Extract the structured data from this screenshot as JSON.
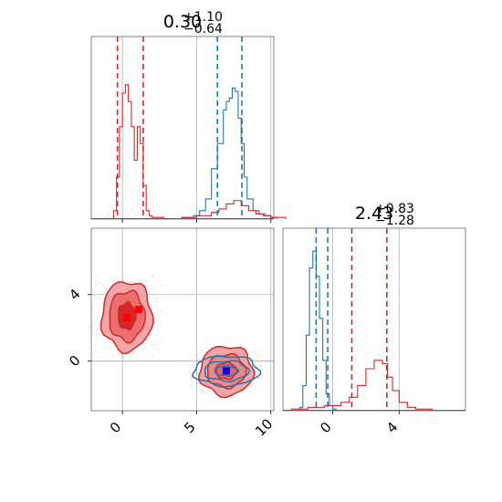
{
  "colors": {
    "blue": "#1f77b4",
    "red": "#d62728",
    "fill_red_light": "#f3a6a6",
    "grid": "#b0b0b0"
  },
  "chart_data": {
    "type": "corner",
    "grid": true,
    "panels": [
      {
        "id": "hist_param1",
        "type": "histogram",
        "title": {
          "main": "0.30",
          "sup": "+1.10",
          "sub": "−0.64"
        },
        "xlim": [
          -2.1,
          10.2
        ],
        "xticks": [
          0,
          5,
          10
        ],
        "series": [
          {
            "color": "red",
            "x": [
              -0.6,
              -0.4,
              -0.2,
              0,
              0.2,
              0.4,
              0.6,
              0.8,
              1.0,
              1.2,
              1.4,
              1.6,
              1.8,
              2.0,
              2.2,
              2.4,
              2.6,
              2.8,
              3.0
            ],
            "density": [
              0.05,
              0.25,
              0.55,
              0.75,
              0.8,
              0.7,
              0.55,
              0.35,
              0.55,
              0.45,
              0.2,
              0.05,
              0.02,
              0.01,
              0.01,
              0.01,
              0.01,
              0,
              0
            ]
          },
          {
            "color": "blue",
            "x": [
              4.0,
              4.4,
              4.8,
              5.2,
              5.6,
              6.0,
              6.4,
              6.8,
              7.0,
              7.2,
              7.4,
              7.6,
              7.8,
              8.0,
              8.2,
              8.4,
              8.8,
              9.2,
              9.6,
              10.0
            ],
            "density": [
              0.005,
              0.01,
              0.02,
              0.05,
              0.12,
              0.3,
              0.45,
              0.65,
              0.7,
              0.72,
              0.78,
              0.76,
              0.6,
              0.45,
              0.25,
              0.12,
              0.05,
              0.03,
              0.02,
              0.01
            ]
          },
          {
            "color": "red",
            "x": [
              4.0,
              5.0,
              6.0,
              6.5,
              7.0,
              7.5,
              8.0,
              8.5,
              9.0,
              9.5,
              10.0
            ],
            "density": [
              0.01,
              0.02,
              0.04,
              0.06,
              0.09,
              0.11,
              0.08,
              0.05,
              0.03,
              0.02,
              0.01
            ]
          }
        ],
        "quantile_lines": [
          {
            "color": "red",
            "x": -0.34
          },
          {
            "color": "red",
            "x": 1.4
          },
          {
            "color": "blue",
            "x": 6.4
          },
          {
            "color": "blue",
            "x": 8.05
          }
        ]
      },
      {
        "id": "hist_param2",
        "type": "histogram",
        "title": {
          "main": "2.43",
          "sup": "+0.83",
          "sub": "−1.28"
        },
        "xlim": [
          -3.0,
          8.0
        ],
        "xticks": [
          0,
          4
        ],
        "series": [
          {
            "color": "blue",
            "x": [
              -2.0,
              -1.8,
              -1.6,
              -1.4,
              -1.2,
              -1.0,
              -0.8,
              -0.6,
              -0.4,
              -0.2,
              0
            ],
            "density": [
              0.02,
              0.15,
              0.45,
              0.85,
              0.95,
              0.8,
              0.55,
              0.3,
              0.1,
              0.03,
              0.01
            ]
          },
          {
            "color": "red",
            "x": [
              -2.5,
              -1.5,
              -0.5,
              0.5,
              1.0,
              1.5,
              2.0,
              2.5,
              3.0,
              3.3,
              3.6,
              4.0,
              4.5,
              5.0
            ],
            "density": [
              0.01,
              0.02,
              0.03,
              0.05,
              0.08,
              0.15,
              0.25,
              0.3,
              0.28,
              0.2,
              0.12,
              0.05,
              0.02,
              0.01
            ]
          }
        ],
        "quantile_lines": [
          {
            "color": "blue",
            "x": -1.0
          },
          {
            "color": "blue",
            "x": -0.3
          },
          {
            "color": "red",
            "x": 1.15
          },
          {
            "color": "red",
            "x": 3.26
          }
        ]
      },
      {
        "id": "scatter_2d",
        "type": "contour",
        "xlim": [
          -2.1,
          10.2
        ],
        "ylim": [
          -3.0,
          8.0
        ],
        "xticks": [
          0,
          5,
          10
        ],
        "yticks": [
          0,
          4
        ],
        "red_cluster_a": {
          "center": [
            0.3,
            2.7
          ],
          "levels_rx": [
            1.7,
            1.2,
            0.6
          ],
          "levels_ry": [
            2.1,
            1.5,
            0.8
          ]
        },
        "red_cluster_b": {
          "center": [
            7.0,
            -0.6
          ],
          "levels_rx": [
            1.8,
            1.3,
            0.7
          ],
          "levels_ry": [
            1.5,
            1.0,
            0.5
          ]
        },
        "blue_cluster": {
          "center": [
            7.0,
            -0.6
          ],
          "levels_rx": [
            2.2,
            1.5,
            0.8
          ],
          "levels_ry": [
            0.9,
            0.6,
            0.3
          ]
        },
        "markers": [
          {
            "color": "red",
            "x": 0.3,
            "y": 2.6
          },
          {
            "color": "red",
            "x": 1.1,
            "y": 3.1
          },
          {
            "color": "red",
            "x": 7.0,
            "y": -0.6
          },
          {
            "color": "blue",
            "x": 7.0,
            "y": -0.6
          }
        ]
      }
    ]
  }
}
